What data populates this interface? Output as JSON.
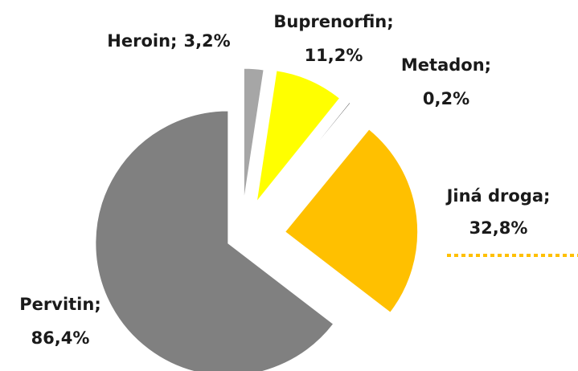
{
  "chart_data": {
    "type": "pie",
    "categories": [
      "Heroin;",
      "Buprenorfin;",
      "Metadon;",
      "Jiná droga;",
      "Pervitin;"
    ],
    "values": [
      3.2,
      11.2,
      0.2,
      32.8,
      86.4
    ],
    "value_labels": [
      "3,2%",
      "11,2%",
      "0,2%",
      "32,8%",
      "86,4%"
    ],
    "colors": [
      "#a6a6a6",
      "#ffff00",
      "#595959",
      "#ffc000",
      "#808080"
    ]
  }
}
